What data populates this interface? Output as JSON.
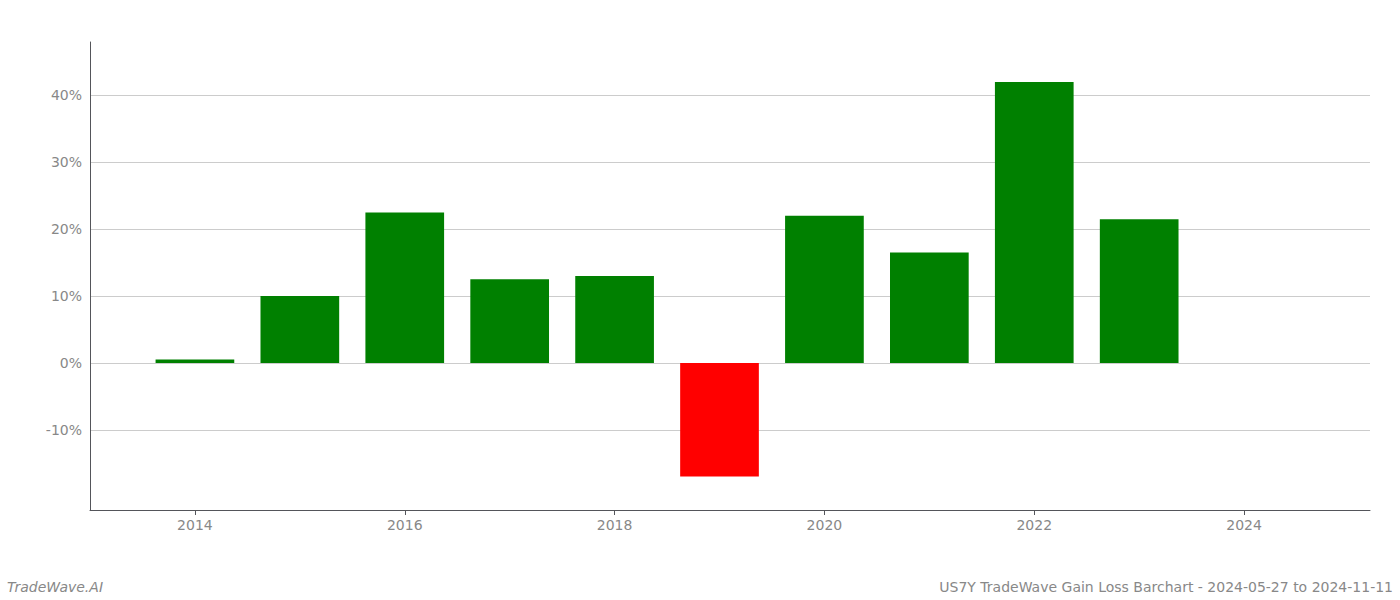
{
  "chart_data": {
    "type": "bar",
    "x": [
      2014,
      2015,
      2016,
      2017,
      2018,
      2019,
      2020,
      2021,
      2022,
      2023
    ],
    "values": [
      0.5,
      10.0,
      22.5,
      12.5,
      13.0,
      -17.0,
      22.0,
      16.5,
      42.0,
      21.5
    ],
    "colors": [
      "#008000",
      "#008000",
      "#008000",
      "#008000",
      "#008000",
      "#ff0000",
      "#008000",
      "#008000",
      "#008000",
      "#008000"
    ],
    "xlim": [
      2013.0,
      2025.2
    ],
    "xticks": [
      2014,
      2016,
      2018,
      2020,
      2022,
      2024
    ],
    "ylim": [
      -22,
      48
    ],
    "yticks": [
      {
        "value": -10,
        "label": "-10%"
      },
      {
        "value": 0,
        "label": "0%"
      },
      {
        "value": 10,
        "label": "10%"
      },
      {
        "value": 20,
        "label": "20%"
      },
      {
        "value": 30,
        "label": "30%"
      },
      {
        "value": 40,
        "label": "40%"
      }
    ],
    "grid": true,
    "annotations": [
      "TradeWave.AI",
      "US7Y TradeWave Gain Loss Barchart - 2024-05-27 to 2024-11-11"
    ]
  }
}
